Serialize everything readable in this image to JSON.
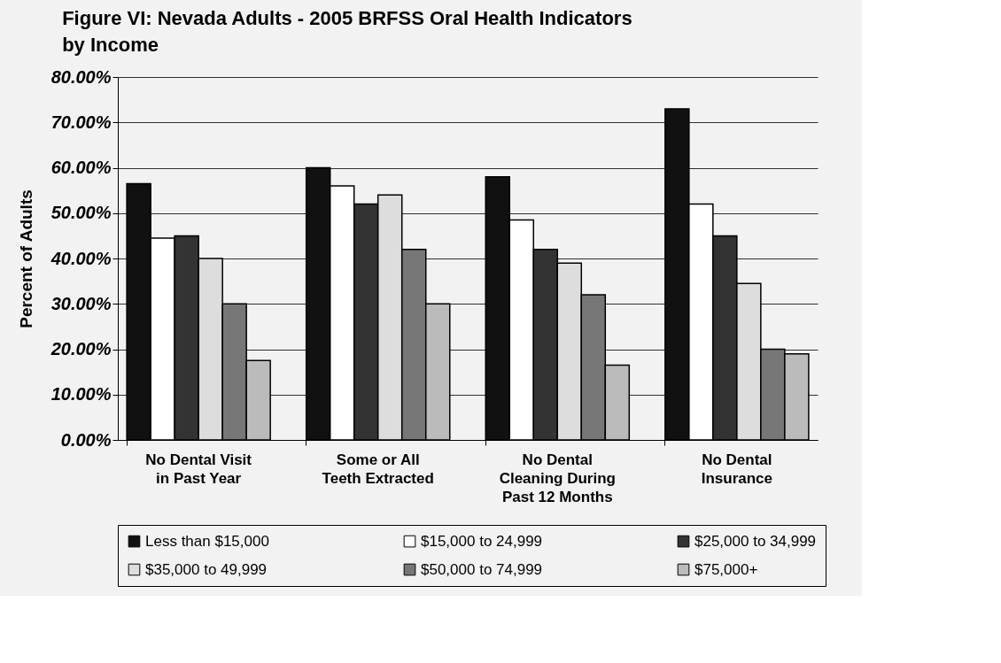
{
  "chart_data": {
    "type": "bar",
    "title": "Figure VI:  Nevada Adults - 2005 BRFSS Oral Health Indicators by Income",
    "ylabel": "Percent of Adults",
    "categories": [
      "No Dental Visit in Past Year",
      "Some or All Teeth Extracted",
      "No Dental Cleaning During Past 12 Months",
      "No Dental Insurance"
    ],
    "series": [
      {
        "name": "Less than $15,000",
        "color": "#111111",
        "values": [
          56.5,
          60,
          58,
          73
        ]
      },
      {
        "name": "$15,000 to 24,999",
        "color": "#ffffff",
        "values": [
          44.5,
          56,
          48.5,
          52
        ]
      },
      {
        "name": "$25,000 to 34,999",
        "color": "#333333",
        "values": [
          45,
          52,
          42,
          45
        ]
      },
      {
        "name": "$35,000 to 49,999",
        "color": "#dddddd",
        "values": [
          40,
          54,
          39,
          34.5
        ]
      },
      {
        "name": "$50,000 to 74,999",
        "color": "#777777",
        "values": [
          30,
          42,
          32,
          20
        ]
      },
      {
        "name": "$75,000+",
        "color": "#bbbbbb",
        "values": [
          17.5,
          30,
          16.5,
          19
        ]
      }
    ],
    "ylim": [
      0,
      80
    ],
    "yticks": [
      {
        "value": 0,
        "label": "0.00%"
      },
      {
        "value": 10,
        "label": "10.00%"
      },
      {
        "value": 20,
        "label": "20.00%"
      },
      {
        "value": 30,
        "label": "30.00%"
      },
      {
        "value": 40,
        "label": "40.00%"
      },
      {
        "value": 50,
        "label": "50.00%"
      },
      {
        "value": 60,
        "label": "60.00%"
      },
      {
        "value": 70,
        "label": "70.00%"
      },
      {
        "value": 80,
        "label": "80.00%"
      }
    ],
    "grid": "y",
    "legend": "bottom"
  }
}
